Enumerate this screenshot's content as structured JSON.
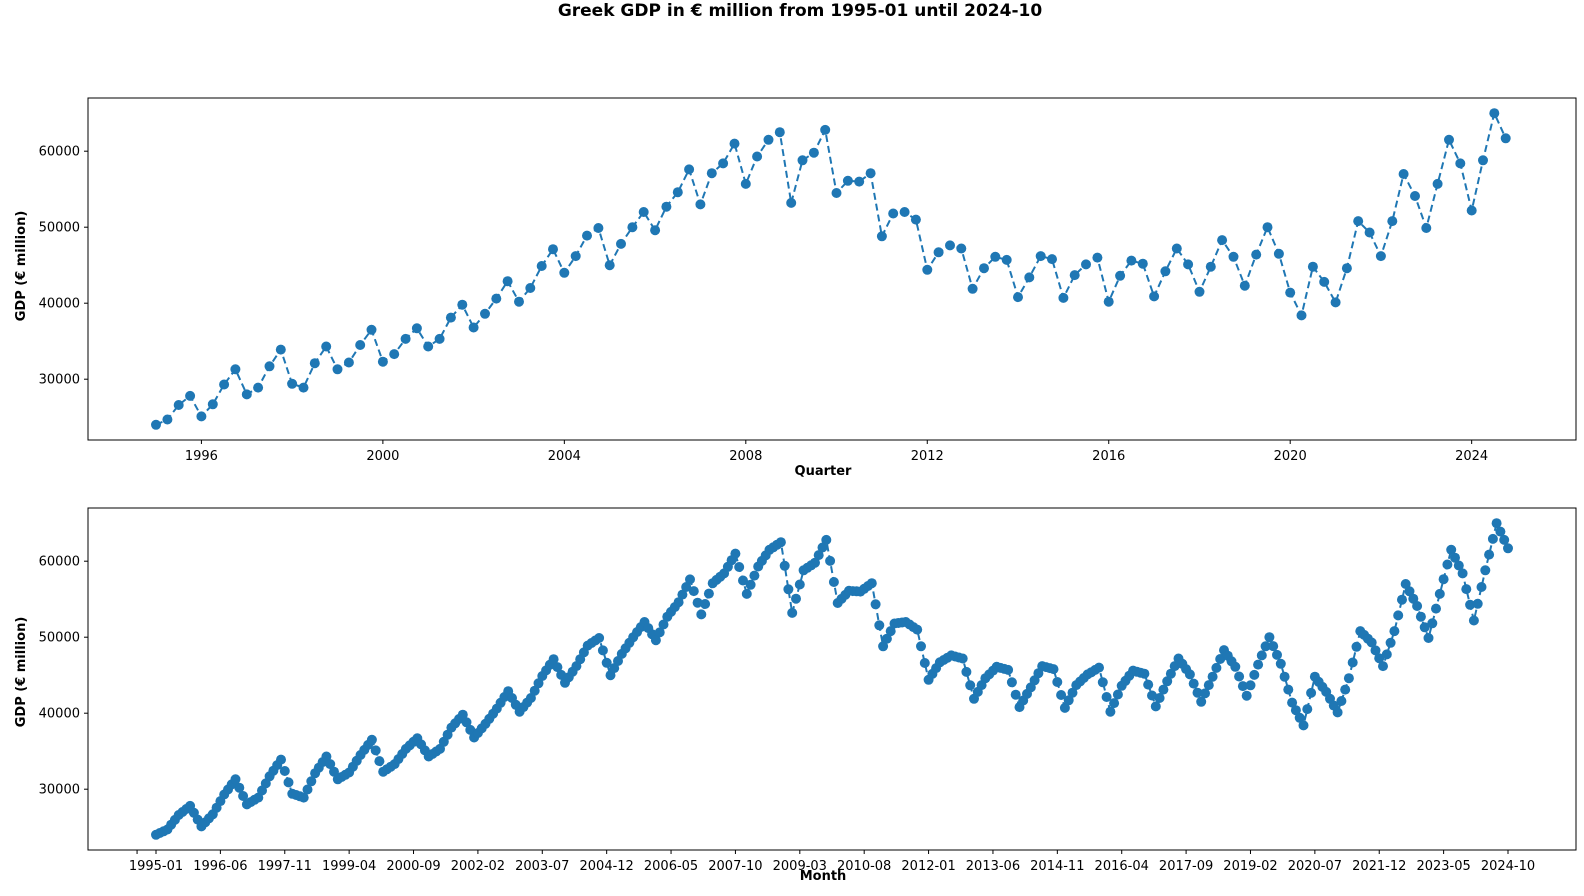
{
  "title": "Greek GDP in € million from 1995-01 until 2024-10",
  "colors": {
    "series": "#1f77b4"
  },
  "chart_data": [
    {
      "type": "line",
      "title": "",
      "xlabel": "Quarter",
      "ylabel": "GDP (€ million)",
      "marker": "circle",
      "line_style": "dashed",
      "grid": false,
      "xlim": [
        1993.5,
        2026.3
      ],
      "ylim": [
        22000,
        67000
      ],
      "x_ticks": [
        1996,
        2000,
        2004,
        2008,
        2012,
        2016,
        2020,
        2024
      ],
      "x_tick_labels": [
        "1996",
        "2000",
        "2004",
        "2008",
        "2012",
        "2016",
        "2020",
        "2024"
      ],
      "y_ticks": [
        30000,
        40000,
        50000,
        60000
      ],
      "y_tick_labels": [
        "30000",
        "40000",
        "50000",
        "60000"
      ],
      "x_start": 1995.0,
      "x_step": 0.25,
      "values": [
        24000,
        24700,
        26600,
        27800,
        25100,
        26700,
        29300,
        31300,
        28000,
        28900,
        31700,
        33900,
        29400,
        28900,
        32100,
        34300,
        31300,
        32200,
        34500,
        36500,
        32300,
        33300,
        35300,
        36700,
        34300,
        35300,
        38100,
        39800,
        36800,
        38600,
        40600,
        42900,
        40200,
        42000,
        44900,
        47100,
        44000,
        46200,
        48900,
        49900,
        45000,
        47800,
        50000,
        52000,
        49600,
        52700,
        54600,
        57600,
        53000,
        57100,
        58400,
        61000,
        55700,
        59300,
        61500,
        62500,
        53200,
        58800,
        59800,
        62800,
        54500,
        56100,
        56000,
        57100,
        48800,
        51800,
        52000,
        51000,
        44400,
        46700,
        47600,
        47200,
        41900,
        44600,
        46100,
        45700,
        40800,
        43400,
        46200,
        45800,
        40700,
        43700,
        45100,
        46000,
        40200,
        43600,
        45600,
        45200,
        40900,
        44200,
        47200,
        45100,
        41500,
        44800,
        48300,
        46100,
        42300,
        46400,
        50000,
        46500,
        41400,
        38400,
        44800,
        42800,
        40100,
        44600,
        50800,
        49300,
        46200,
        50800,
        57000,
        54100,
        49900,
        55700,
        61500,
        58400,
        52200,
        58800,
        65000,
        61700
      ]
    },
    {
      "type": "line",
      "title": "",
      "xlabel": "Month",
      "ylabel": "GDP (€ million)",
      "marker": "circle",
      "line_style": "dashed",
      "grid": false,
      "x_start": "1995-01",
      "x_end": "2024-10",
      "x_step_months": 1,
      "interpolation": "monthly values interpolated between quarterly GDP figures",
      "x_tick_labels": [
        "1995-01",
        "1996-06",
        "1997-11",
        "1999-04",
        "2000-09",
        "2002-02",
        "2003-07",
        "2004-12",
        "2006-05",
        "2007-10",
        "2009-03",
        "2010-08",
        "2012-01",
        "2013-06",
        "2014-11",
        "2016-04",
        "2017-09",
        "2019-02",
        "2020-07",
        "2021-12",
        "2023-05",
        "2024-10"
      ],
      "ylim": [
        22000,
        67000
      ],
      "y_ticks": [
        30000,
        40000,
        50000,
        60000
      ],
      "y_tick_labels": [
        "30000",
        "40000",
        "50000",
        "60000"
      ]
    }
  ]
}
